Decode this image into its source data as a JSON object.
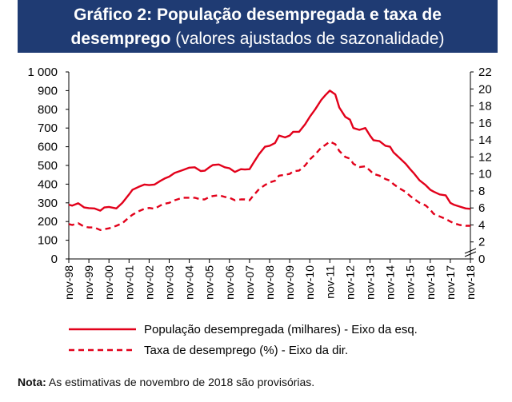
{
  "header": {
    "title_main_1": "Gráfico 2: População desempregada e taxa de",
    "title_main_2": "desemprego",
    "title_sub": "(valores ajustados de sazonalidade)"
  },
  "note": {
    "label": "Nota:",
    "text": "As estimativas de novembro de 2018 são provisórias."
  },
  "colors": {
    "title_bg": "#1f3b73",
    "series": "#e2001a"
  },
  "chart_data": {
    "type": "line",
    "title": "População desempregada e taxa de desemprego",
    "x_ticks": [
      "nov-98",
      "nov-99",
      "nov-00",
      "nov-01",
      "nov-02",
      "nov-03",
      "nov-04",
      "nov-05",
      "nov-06",
      "nov-07",
      "nov-08",
      "nov-09",
      "nov-10",
      "nov-11",
      "nov-12",
      "nov-13",
      "nov-14",
      "nov-15",
      "nov-16",
      "nov-17",
      "nov-18"
    ],
    "y_left": {
      "ylim": [
        0,
        1000
      ],
      "ticks": [
        0,
        100,
        200,
        300,
        400,
        500,
        600,
        700,
        800,
        900,
        1000
      ],
      "tick_labels": [
        "0",
        "100",
        "200",
        "300",
        "400",
        "500",
        "600",
        "700",
        "800",
        "900",
        "1 000"
      ]
    },
    "y_right": {
      "ylim": [
        0,
        22
      ],
      "ticks": [
        0,
        2,
        4,
        6,
        8,
        10,
        12,
        14,
        16,
        18,
        20,
        22
      ],
      "tick_labels": [
        "0",
        "2",
        "4",
        "6",
        "8",
        "10",
        "12",
        "14",
        "16",
        "18",
        "20",
        "22"
      ]
    },
    "series": [
      {
        "name": "População desempregada (milhares) - Eixo da esq.",
        "style": "solid",
        "axis": "left",
        "x": [
          1998.83,
          1999.0,
          1999.3,
          1999.6,
          1999.83,
          2000.1,
          2000.4,
          2000.6,
          2000.83,
          2001.2,
          2001.5,
          2001.83,
          2002.0,
          2002.3,
          2002.6,
          2002.83,
          2003.1,
          2003.4,
          2003.6,
          2003.83,
          2004.1,
          2004.5,
          2004.83,
          2005.1,
          2005.4,
          2005.6,
          2005.83,
          2006.0,
          2006.3,
          2006.6,
          2006.83,
          2007.1,
          2007.4,
          2007.6,
          2007.83,
          2008.0,
          2008.3,
          2008.6,
          2008.83,
          2009.1,
          2009.3,
          2009.6,
          2009.83,
          2010.0,
          2010.3,
          2010.6,
          2010.83,
          2011.1,
          2011.4,
          2011.6,
          2011.83,
          2012.1,
          2012.3,
          2012.6,
          2012.83,
          2013.0,
          2013.3,
          2013.6,
          2013.83,
          2014.0,
          2014.3,
          2014.6,
          2014.83,
          2015.0,
          2015.3,
          2015.6,
          2015.83,
          2016.0,
          2016.3,
          2016.6,
          2016.83,
          2017.0,
          2017.3,
          2017.6,
          2017.83,
          2018.0,
          2018.3,
          2018.6,
          2018.83
        ],
        "values": [
          290,
          285,
          298,
          275,
          272,
          270,
          258,
          275,
          278,
          270,
          300,
          345,
          370,
          385,
          398,
          395,
          398,
          418,
          430,
          440,
          460,
          475,
          488,
          490,
          470,
          472,
          490,
          502,
          505,
          490,
          485,
          465,
          480,
          478,
          480,
          510,
          560,
          600,
          605,
          620,
          660,
          650,
          660,
          680,
          680,
          720,
          760,
          800,
          850,
          875,
          900,
          880,
          810,
          760,
          745,
          700,
          690,
          700,
          660,
          635,
          630,
          605,
          600,
          570,
          540,
          510,
          480,
          460,
          420,
          395,
          370,
          360,
          345,
          340,
          300,
          290,
          280,
          270,
          268
        ]
      },
      {
        "name": "Taxa de desemprego (%) - Eixo da dir.",
        "style": "dashed",
        "axis": "right",
        "x": [
          1998.83,
          1999.0,
          1999.3,
          1999.6,
          1999.83,
          2000.1,
          2000.4,
          2000.6,
          2000.83,
          2001.2,
          2001.5,
          2001.83,
          2002.0,
          2002.3,
          2002.6,
          2002.83,
          2003.1,
          2003.4,
          2003.6,
          2003.83,
          2004.1,
          2004.5,
          2004.83,
          2005.1,
          2005.4,
          2005.6,
          2005.83,
          2006.0,
          2006.3,
          2006.6,
          2006.83,
          2007.1,
          2007.4,
          2007.6,
          2007.83,
          2008.0,
          2008.3,
          2008.6,
          2008.83,
          2009.1,
          2009.3,
          2009.6,
          2009.83,
          2010.0,
          2010.3,
          2010.6,
          2010.83,
          2011.1,
          2011.4,
          2011.6,
          2011.83,
          2012.1,
          2012.3,
          2012.6,
          2012.83,
          2013.0,
          2013.3,
          2013.6,
          2013.83,
          2014.0,
          2014.3,
          2014.6,
          2014.83,
          2015.0,
          2015.3,
          2015.6,
          2015.83,
          2016.0,
          2016.3,
          2016.6,
          2016.83,
          2017.0,
          2017.3,
          2017.6,
          2017.83,
          2018.0,
          2018.3,
          2018.6,
          2018.83
        ],
        "values": [
          4.1,
          4.0,
          4.2,
          3.8,
          3.7,
          3.7,
          3.4,
          3.5,
          3.6,
          3.9,
          4.2,
          4.9,
          5.2,
          5.6,
          5.9,
          6.0,
          5.9,
          6.3,
          6.5,
          6.6,
          6.9,
          7.2,
          7.2,
          7.2,
          7.0,
          7.0,
          7.3,
          7.4,
          7.5,
          7.3,
          7.2,
          6.9,
          7.0,
          7.0,
          6.9,
          7.4,
          8.2,
          8.7,
          9.0,
          9.2,
          9.8,
          9.9,
          10.0,
          10.3,
          10.4,
          11.0,
          11.7,
          12.3,
          13.1,
          13.4,
          13.8,
          13.5,
          12.7,
          12.0,
          11.8,
          11.2,
          10.8,
          10.9,
          10.4,
          10.0,
          9.8,
          9.4,
          9.2,
          8.8,
          8.3,
          7.9,
          7.4,
          7.1,
          6.6,
          6.3,
          5.8,
          5.3,
          5.0,
          4.7,
          4.4,
          4.2,
          4.0,
          3.9,
          3.9
        ]
      }
    ],
    "legend": [
      "População desempregada (milhares) - Eixo da esq.",
      "Taxa de desemprego (%) - Eixo da dir."
    ],
    "legend_position": "bottom-left"
  }
}
